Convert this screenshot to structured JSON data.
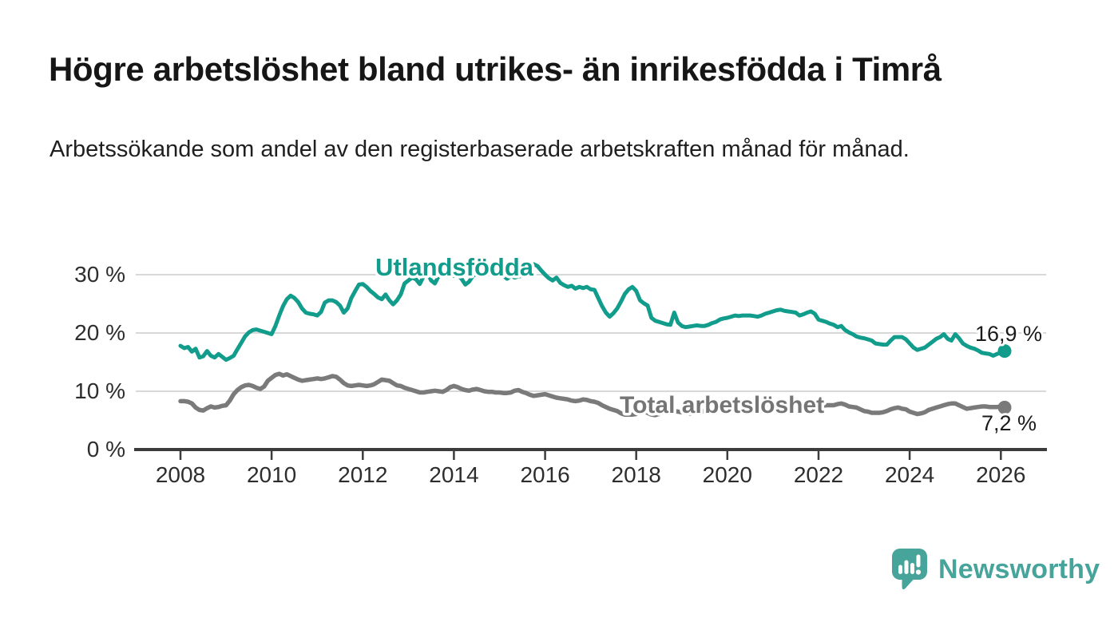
{
  "header": {
    "title": "Högre arbetslöshet bland utrikes- än inrikesfödda i Timrå",
    "subtitle": "Arbetssökande som andel av den registerbaserade arbetskraften månad för månad."
  },
  "chart_data": {
    "type": "line",
    "title": "Högre arbetslöshet bland utrikes- än inrikesfödda i Timrå",
    "subtitle": "Arbetssökande som andel av den registerbaserade arbetskraften månad för månad.",
    "x_start_year": 2008,
    "x_step_months": 1,
    "x_ticks": [
      "2008",
      "2010",
      "2012",
      "2014",
      "2016",
      "2018",
      "2020",
      "2022",
      "2024",
      "2026"
    ],
    "y_ticks": [
      "0 %",
      "10 %",
      "20 %",
      "30 %"
    ],
    "ylim": [
      0,
      33
    ],
    "grid": "horizontal-only",
    "legend": "inline-labels",
    "series": [
      {
        "name": "Utlandsfödda",
        "color": "#129c8c",
        "end_label": "16,9 %",
        "end_value": 16.9,
        "values": [
          17.8,
          17.4,
          17.6,
          16.8,
          17.3,
          15.8,
          16.0,
          16.9,
          16.1,
          15.8,
          16.4,
          15.9,
          15.4,
          15.7,
          16.1,
          17.2,
          18.3,
          19.4,
          20.1,
          20.5,
          20.6,
          20.4,
          20.2,
          20.0,
          19.8,
          21.2,
          23.0,
          24.6,
          25.8,
          26.4,
          26.0,
          25.3,
          24.2,
          23.5,
          23.3,
          23.2,
          23.0,
          23.6,
          25.2,
          25.6,
          25.6,
          25.3,
          24.7,
          23.5,
          24.2,
          26.0,
          27.2,
          28.3,
          28.4,
          27.9,
          27.2,
          26.7,
          26.1,
          25.8,
          26.6,
          25.6,
          24.9,
          25.6,
          26.6,
          28.5,
          29.0,
          29.5,
          29.2,
          28.4,
          29.7,
          30.3,
          29.0,
          28.5,
          29.8,
          30.4,
          30.6,
          30.2,
          29.8,
          29.9,
          29.3,
          28.3,
          28.8,
          29.8,
          30.2,
          30.0,
          30.3,
          30.1,
          30.4,
          30.3,
          30.4,
          29.8,
          29.3,
          29.8,
          29.5,
          29.7,
          29.8,
          30.1,
          31.0,
          31.8,
          31.5,
          30.7,
          30.0,
          29.4,
          29.0,
          29.5,
          28.6,
          28.2,
          27.9,
          28.1,
          27.6,
          27.9,
          27.7,
          27.9,
          27.5,
          27.4,
          26.0,
          24.6,
          23.5,
          22.8,
          23.4,
          24.2,
          25.4,
          26.7,
          27.5,
          27.9,
          27.2,
          25.6,
          25.1,
          24.7,
          22.6,
          22.1,
          21.9,
          21.7,
          21.5,
          21.4,
          23.5,
          21.8,
          21.2,
          21.0,
          21.1,
          21.2,
          21.3,
          21.2,
          21.2,
          21.4,
          21.7,
          21.9,
          22.3,
          22.5,
          22.6,
          22.8,
          23.0,
          22.9,
          23.0,
          23.0,
          23.0,
          22.9,
          22.8,
          23.0,
          23.3,
          23.5,
          23.7,
          23.9,
          24.0,
          23.8,
          23.7,
          23.6,
          23.5,
          23.0,
          23.2,
          23.5,
          23.7,
          23.3,
          22.3,
          22.1,
          21.9,
          21.6,
          21.4,
          21.0,
          21.2,
          20.5,
          20.1,
          19.8,
          19.4,
          19.2,
          19.1,
          18.9,
          18.7,
          18.2,
          18.1,
          18.0,
          18.0,
          18.7,
          19.3,
          19.3,
          19.3,
          18.9,
          18.2,
          17.5,
          17.1,
          17.3,
          17.5,
          18.0,
          18.5,
          19.0,
          19.3,
          19.8,
          19.0,
          18.7,
          19.8,
          19.1,
          18.2,
          17.8,
          17.5,
          17.3,
          17.0,
          16.6,
          16.5,
          16.4,
          16.1,
          16.4,
          16.6,
          16.9
        ]
      },
      {
        "name": "Total arbetslöshet",
        "color": "#7a7a7a",
        "end_label": "7,2 %",
        "end_value": 7.2,
        "values": [
          8.3,
          8.3,
          8.2,
          7.9,
          7.2,
          6.8,
          6.7,
          7.1,
          7.4,
          7.2,
          7.3,
          7.5,
          7.6,
          8.4,
          9.5,
          10.2,
          10.7,
          11.0,
          11.1,
          10.9,
          10.6,
          10.4,
          10.8,
          11.8,
          12.3,
          12.8,
          13.0,
          12.7,
          12.9,
          12.6,
          12.3,
          12.0,
          11.8,
          11.9,
          12.0,
          12.1,
          12.2,
          12.1,
          12.2,
          12.4,
          12.6,
          12.5,
          12.0,
          11.4,
          11.0,
          10.9,
          11.0,
          11.1,
          11.0,
          10.9,
          11.0,
          11.2,
          11.6,
          12.0,
          11.9,
          11.8,
          11.4,
          11.0,
          10.9,
          10.6,
          10.4,
          10.2,
          10.0,
          9.8,
          9.8,
          9.9,
          10.0,
          10.1,
          10.0,
          9.9,
          10.2,
          10.7,
          10.9,
          10.7,
          10.4,
          10.2,
          10.1,
          10.3,
          10.4,
          10.2,
          10.0,
          9.9,
          9.9,
          9.8,
          9.8,
          9.7,
          9.7,
          9.8,
          10.1,
          10.2,
          9.9,
          9.7,
          9.4,
          9.2,
          9.3,
          9.4,
          9.5,
          9.3,
          9.1,
          8.9,
          8.8,
          8.7,
          8.6,
          8.4,
          8.3,
          8.4,
          8.6,
          8.5,
          8.3,
          8.2,
          8.0,
          7.6,
          7.3,
          7.0,
          6.8,
          6.6,
          6.2,
          6.0,
          6.0,
          6.0,
          6.1,
          6.4,
          6.5,
          6.3,
          6.0,
          5.9,
          6.1,
          6.4,
          6.5,
          6.5,
          6.6,
          6.5,
          6.4,
          6.3,
          6.2,
          6.2,
          6.3,
          6.5,
          6.6,
          6.7,
          6.8,
          6.9,
          7.0,
          7.1,
          7.2,
          7.4,
          7.6,
          7.8,
          8.0,
          8.1,
          8.1,
          8.0,
          7.9,
          7.9,
          7.8,
          7.8,
          7.8,
          7.9,
          7.9,
          7.8,
          7.7,
          7.6,
          7.5,
          7.4,
          7.4,
          7.5,
          7.6,
          7.6,
          7.5,
          7.5,
          7.6,
          7.6,
          7.6,
          7.8,
          7.9,
          7.7,
          7.4,
          7.3,
          7.2,
          6.9,
          6.6,
          6.5,
          6.3,
          6.3,
          6.3,
          6.4,
          6.6,
          6.9,
          7.1,
          7.2,
          7.0,
          6.9,
          6.5,
          6.3,
          6.1,
          6.2,
          6.4,
          6.8,
          7.0,
          7.2,
          7.4,
          7.6,
          7.8,
          7.9,
          7.9,
          7.6,
          7.3,
          7.0,
          7.1,
          7.2,
          7.3,
          7.4,
          7.4,
          7.3,
          7.3,
          7.3,
          7.4,
          7.2
        ]
      }
    ]
  },
  "footer": {
    "brand": "Newsworthy",
    "brand_color": "#47a49b",
    "logo_icon": "speech-bubble-bar-chart"
  }
}
